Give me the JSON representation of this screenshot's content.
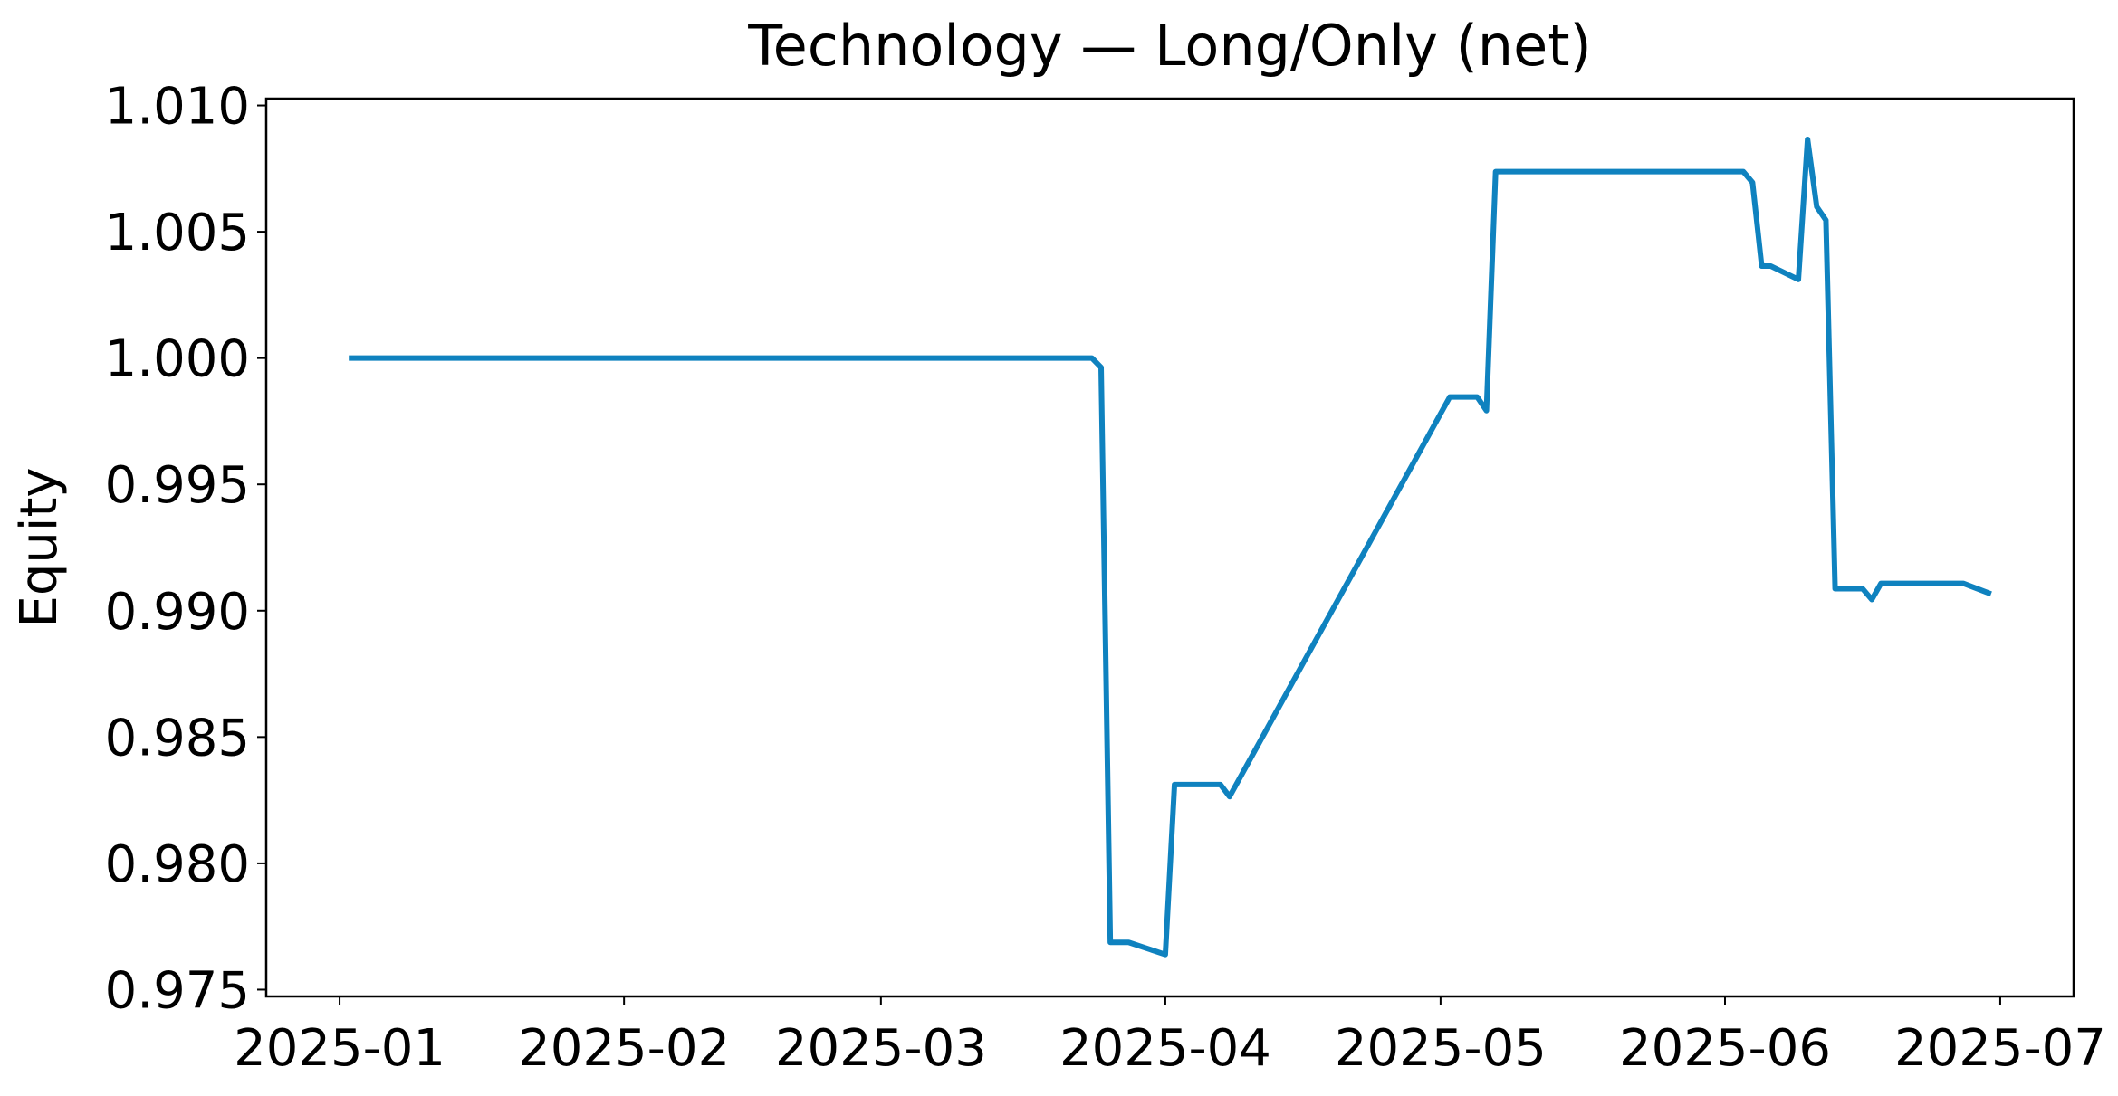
{
  "chart_data": {
    "type": "line",
    "title": "Technology — Long/Only (net)",
    "ylabel": "Equity",
    "x": [
      1,
      82,
      83,
      84,
      86,
      90,
      91,
      96,
      97,
      121,
      124,
      125,
      126,
      153,
      154,
      155,
      156,
      159,
      160,
      161,
      162,
      163,
      166,
      167,
      168,
      177,
      180
    ],
    "values": [
      1.0,
      1.0,
      0.99963,
      0.97687,
      0.97687,
      0.97639,
      0.98312,
      0.98312,
      0.98264,
      0.99846,
      0.99846,
      0.99792,
      1.00738,
      1.00738,
      1.00695,
      1.00364,
      1.00364,
      1.00311,
      1.00866,
      1.00599,
      1.00546,
      0.99087,
      0.99087,
      0.99044,
      0.99108,
      0.99108,
      0.99066
    ],
    "color": "#0f82bf",
    "xlim": [
      -8,
      189
    ],
    "xticks": [
      {
        "value": 0,
        "label": "2025-01"
      },
      {
        "value": 31,
        "label": "2025-02"
      },
      {
        "value": 59,
        "label": "2025-03"
      },
      {
        "value": 90,
        "label": "2025-04"
      },
      {
        "value": 120,
        "label": "2025-05"
      },
      {
        "value": 151,
        "label": "2025-06"
      },
      {
        "value": 181,
        "label": "2025-07"
      }
    ],
    "ylim": [
      0.97473,
      1.01027
    ],
    "yticks": [
      {
        "value": 0.975,
        "label": "0.975"
      },
      {
        "value": 0.98,
        "label": "0.980"
      },
      {
        "value": 0.985,
        "label": "0.985"
      },
      {
        "value": 0.99,
        "label": "0.990"
      },
      {
        "value": 0.995,
        "label": "0.995"
      },
      {
        "value": 1.0,
        "label": "1.000"
      },
      {
        "value": 1.005,
        "label": "1.005"
      },
      {
        "value": 1.01,
        "label": "1.010"
      }
    ],
    "grid": false
  }
}
